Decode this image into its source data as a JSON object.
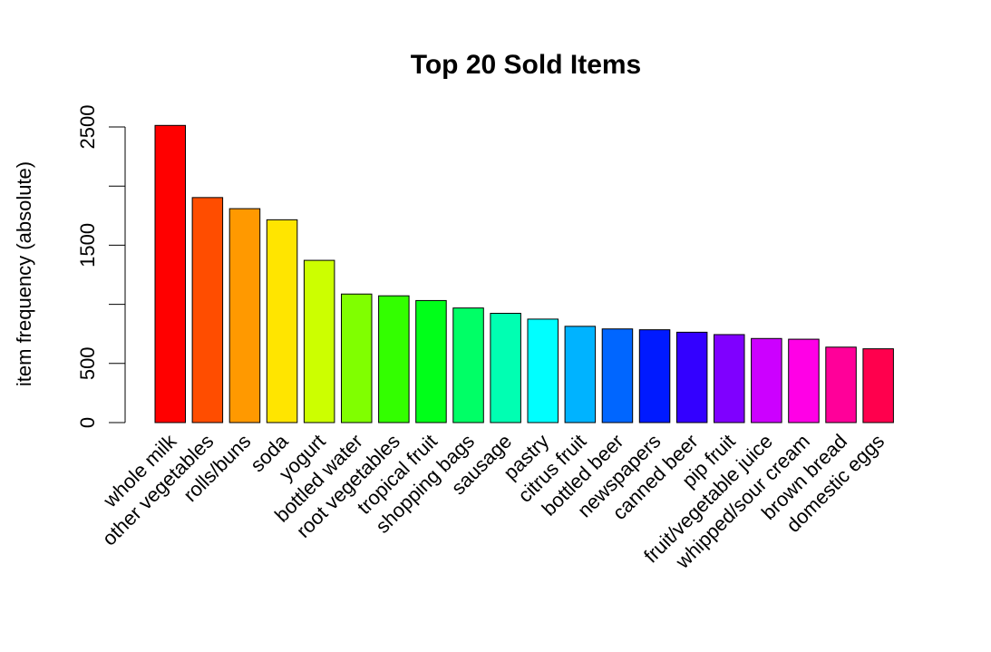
{
  "chart_data": {
    "type": "bar",
    "title": "Top 20 Sold Items",
    "ylabel": "item frequency (absolute)",
    "xlabel": "",
    "ylim": [
      0,
      2500
    ],
    "yticks": [
      0,
      500,
      1500,
      2500
    ],
    "grid": false,
    "categories": [
      "whole milk",
      "other vegetables",
      "rolls/buns",
      "soda",
      "yogurt",
      "bottled water",
      "root vegetables",
      "tropical fruit",
      "shopping bags",
      "sausage",
      "pastry",
      "citrus fruit",
      "bottled beer",
      "newspapers",
      "canned beer",
      "pip fruit",
      "fruit/vegetable juice",
      "whipped/sour cream",
      "brown bread",
      "domestic eggs"
    ],
    "values": [
      2513,
      1903,
      1809,
      1715,
      1372,
      1087,
      1072,
      1032,
      969,
      924,
      875,
      814,
      792,
      785,
      764,
      744,
      711,
      705,
      638,
      624
    ],
    "colors": [
      "#FF0000",
      "#FF4D00",
      "#FF9900",
      "#FFE500",
      "#CCFF00",
      "#80FF00",
      "#33FF00",
      "#00FF19",
      "#00FF66",
      "#00FFB2",
      "#00FFFF",
      "#00B3FF",
      "#0066FF",
      "#001AFF",
      "#3300FF",
      "#7F00FF",
      "#CC00FF",
      "#FF00E6",
      "#FF0099",
      "#FF004D"
    ]
  }
}
